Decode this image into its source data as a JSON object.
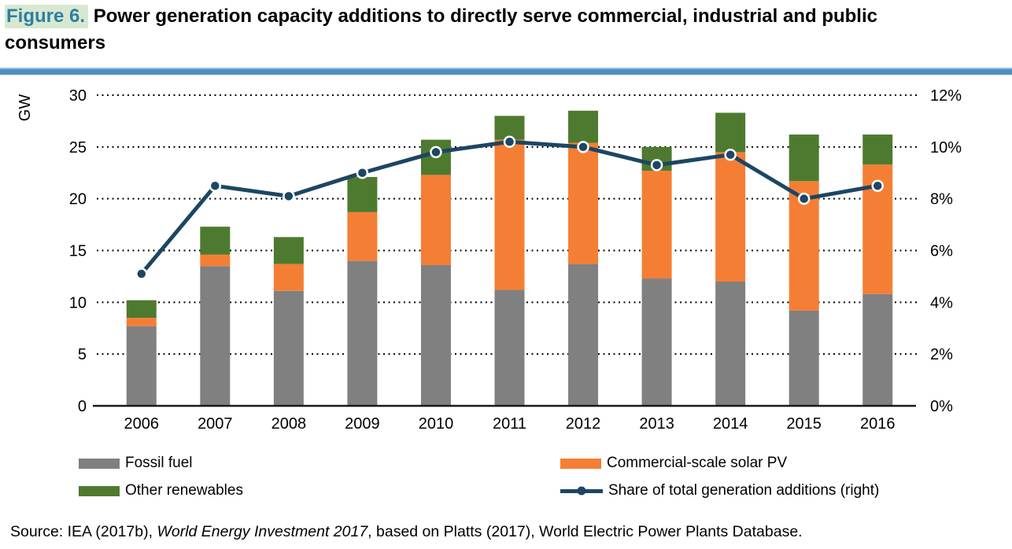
{
  "figure": {
    "label": "Figure 6.",
    "title": " Power generation capacity additions to directly serve commercial, industrial and public consumers"
  },
  "source": {
    "prefix": "Source: IEA (2017b), ",
    "italic": "World Energy Investment 2017",
    "suffix": ", based on Platts (2017), World Electric Power Plants Database."
  },
  "colors": {
    "figure_label": "#2B7FA5",
    "figure_label_highlight": "#D8E8D0",
    "divider_blue": "#4D8FC4",
    "fossil_gray": "#808080",
    "solar_orange": "#F57E35",
    "renewables_green": "#4E7A2F",
    "share_navy": "#1C4662"
  },
  "legend": {
    "items": [
      {
        "label": "Fossil fuel",
        "swatch": "rect",
        "color": "#808080"
      },
      {
        "label": "Commercial-scale solar PV",
        "swatch": "rect",
        "color": "#F57E35"
      },
      {
        "label": "Other renewables",
        "swatch": "rect",
        "color": "#4E7A2F"
      },
      {
        "label": "Share of total generation additions (right)",
        "swatch": "line-dot",
        "color": "#1C4662"
      }
    ]
  },
  "chart_data": {
    "type": "bar",
    "subtype": "stacked-bars-with-line",
    "categories": [
      "2006",
      "2007",
      "2008",
      "2009",
      "2010",
      "2011",
      "2012",
      "2013",
      "2014",
      "2015",
      "2016"
    ],
    "series": [
      {
        "name": "Fossil fuel",
        "type": "bar",
        "axis": "left",
        "color": "#808080",
        "values": [
          7.7,
          13.5,
          11.1,
          14.0,
          13.6,
          11.2,
          13.7,
          12.3,
          12.0,
          9.2,
          10.8
        ]
      },
      {
        "name": "Commercial-scale solar PV",
        "type": "bar",
        "axis": "left",
        "color": "#F57E35",
        "values": [
          0.8,
          1.1,
          2.6,
          4.7,
          8.7,
          14.5,
          11.7,
          10.4,
          12.5,
          12.5,
          12.5
        ]
      },
      {
        "name": "Other renewables",
        "type": "bar",
        "axis": "left",
        "color": "#4E7A2F",
        "values": [
          1.7,
          2.7,
          2.6,
          3.4,
          3.4,
          2.3,
          3.1,
          2.3,
          3.8,
          4.5,
          2.9
        ]
      },
      {
        "name": "Share of total generation additions (right)",
        "type": "line",
        "axis": "right",
        "color": "#1C4662",
        "values": [
          5.1,
          8.5,
          8.1,
          9.0,
          9.8,
          10.2,
          10.0,
          9.3,
          9.7,
          8.0,
          8.5
        ]
      }
    ],
    "stacked_totals": [
      10.2,
      17.3,
      16.3,
      22.1,
      25.7,
      28.0,
      28.5,
      25.0,
      28.3,
      26.2,
      26.2
    ],
    "left_axis": {
      "label": "GW",
      "min": 0,
      "max": 30,
      "ticks": [
        0,
        5,
        10,
        15,
        20,
        25,
        30
      ]
    },
    "right_axis": {
      "min": 0,
      "max": 12,
      "ticks": [
        0,
        2,
        4,
        6,
        8,
        10,
        12
      ],
      "suffix": "%"
    },
    "grid": "dotted-horizontal",
    "legend_position": "bottom"
  }
}
